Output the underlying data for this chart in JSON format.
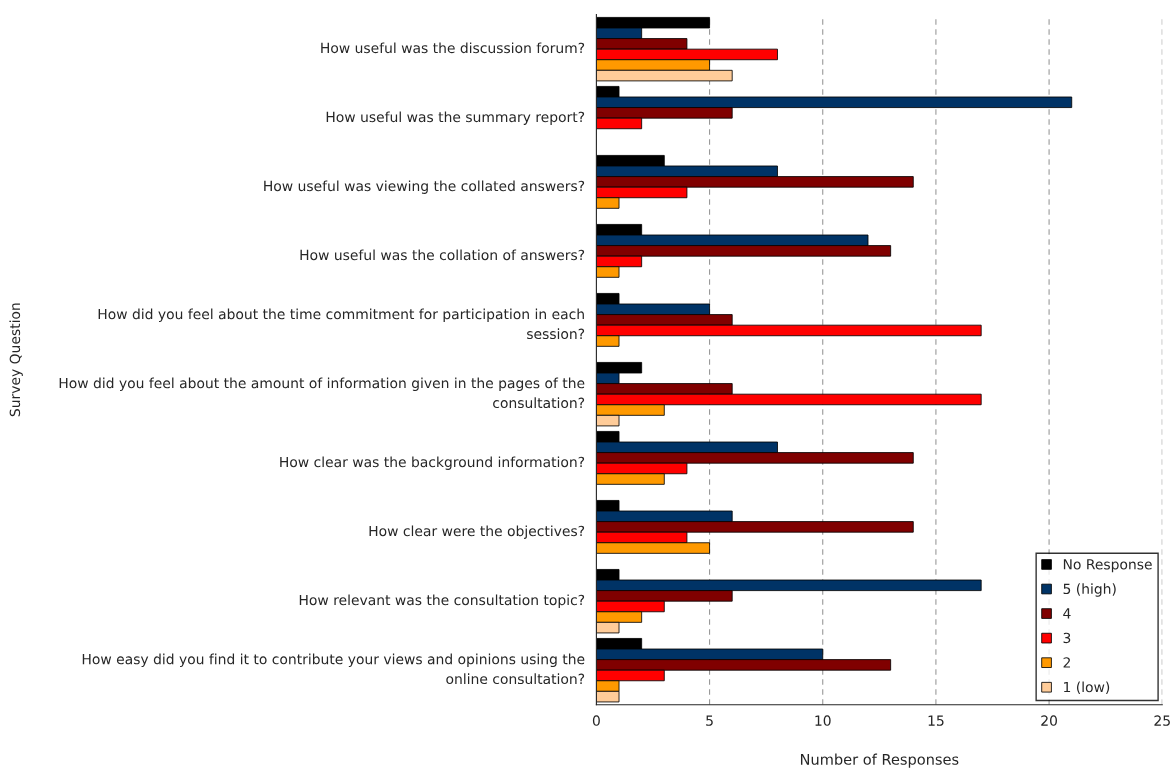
{
  "chart_data": {
    "type": "bar",
    "orientation": "horizontal",
    "xlabel": "Number of Responses",
    "ylabel": "Survey Question",
    "categories": [
      "How useful was the discussion forum?",
      "How useful was the summary report?",
      "How useful was viewing the collated answers?",
      "How useful was the collation of answers?",
      "How did you feel about the time commitment for participation in each session?",
      "How did you feel about the amount of information given in the pages of the consultation?",
      "How clear was the background information?",
      "How clear were the objectives?",
      "How relevant was the consultation topic?",
      "How easy did you find it to contribute your views and opinions using the online consultation?"
    ],
    "series": [
      {
        "name": "No Response",
        "color": "#000000",
        "values": [
          5,
          1,
          3,
          2,
          1,
          2,
          1,
          1,
          1,
          2
        ]
      },
      {
        "name": "5 (high)",
        "color": "#003366",
        "values": [
          2,
          21,
          8,
          12,
          5,
          1,
          8,
          6,
          17,
          10
        ]
      },
      {
        "name": "4",
        "color": "#800000",
        "values": [
          4,
          6,
          14,
          13,
          6,
          6,
          14,
          14,
          6,
          13
        ]
      },
      {
        "name": "3",
        "color": "#ff0000",
        "values": [
          8,
          2,
          4,
          2,
          17,
          17,
          4,
          4,
          3,
          3
        ]
      },
      {
        "name": "2",
        "color": "#ff9900",
        "values": [
          5,
          0,
          1,
          1,
          1,
          3,
          3,
          5,
          2,
          1
        ]
      },
      {
        "name": "1 (low)",
        "color": "#ffcc99",
        "values": [
          6,
          0,
          0,
          0,
          0,
          1,
          0,
          0,
          1,
          1
        ]
      }
    ],
    "xlim": [
      0,
      25
    ],
    "xticks": [
      0,
      5,
      10,
      15,
      20,
      25
    ],
    "grid": "x",
    "legend": "bottom right"
  }
}
